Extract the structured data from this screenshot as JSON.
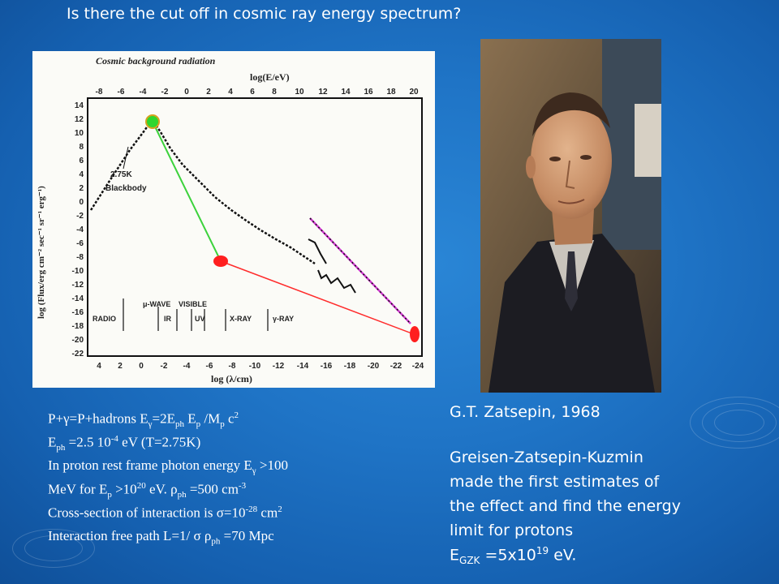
{
  "slide": {
    "title": "Is there the cut off in cosmic ray energy spectrum?",
    "colors": {
      "background": "#1f74c6",
      "text": "#ffffff",
      "chart_panel": "#fbfbf7"
    }
  },
  "chart": {
    "title": "Cosmic background radiation",
    "top_axis_label": "log(E/eV)",
    "top_ticks": [
      "-8",
      "-6",
      "-4",
      "-2",
      "0",
      "2",
      "4",
      "6",
      "8",
      "10",
      "12",
      "14",
      "16",
      "18",
      "20"
    ],
    "bottom_axis_label": "log (λ/cm)",
    "bottom_ticks": [
      "4",
      "2",
      "0",
      "-2",
      "-4",
      "-6",
      "-8",
      "-10",
      "-12",
      "-14",
      "-16",
      "-18",
      "-20",
      "-22",
      "-24"
    ],
    "y_axis_label": "log (Flux/erg cm⁻² sec⁻¹ sr⁻¹ erg⁻¹)",
    "y_ticks": [
      "14",
      "12",
      "10",
      "8",
      "6",
      "4",
      "2",
      "0",
      "-2",
      "-4",
      "-6",
      "-8",
      "-10",
      "-12",
      "-14",
      "-16",
      "-18",
      "-20",
      "-22"
    ],
    "annotations": {
      "temperature": "2.75K",
      "blackbody": "Blackbody"
    },
    "bands": [
      "RADIO",
      "μ-WAVE",
      "IR",
      "VISIBLE",
      "UV",
      "X-RAY",
      "γ-RAY"
    ],
    "markers": {
      "start_color": "#2ed62e",
      "mid_color": "#ff1f1f",
      "end_color": "#ff1f1f",
      "line1_color": "#3cd23c",
      "line2_color": "#ff2b2b",
      "fit_color": "#d43cd4"
    }
  },
  "physics": {
    "line1": {
      "a": "P+γ=P+hadrons   E",
      "a_sub": "γ",
      "b": "=2E",
      "b_sub": "ph",
      "c": " E",
      "c_sub": "p",
      "d": " /M",
      "d_sub": "p",
      "e": " c",
      "e_sup": "2"
    },
    "line2": {
      "a": "E",
      "a_sub": "ph",
      "b": " =2.5 10",
      "b_sup": "-4",
      "c": " eV (T=2.75K)"
    },
    "line3": {
      "a": "In proton rest frame photon energy E",
      "a_sub": "γ",
      "b": " >100"
    },
    "line4": {
      "a": "MeV for E",
      "a_sub": "p",
      "b": " >10",
      "b_sup": "20",
      "c": " eV. ρ",
      "c_sub": "ph",
      "d": " =500 cm",
      "d_sup": "-3"
    },
    "line5": {
      "a": "Cross-section of interaction is σ=10",
      "a_sup": "-28",
      "b": " cm",
      "b_sup": "2"
    },
    "line6": {
      "a": "Interaction free path L=1/ σ ρ",
      "a_sub": "ph",
      "b": " =70 Mpc"
    }
  },
  "side": {
    "caption": "G.T. Zatsepin, 1968",
    "desc1": "Greisen-Zatsepin-Kuzmin",
    "desc2": "made the first estimates of",
    "desc3": "the effect and find the energy",
    "desc4": "limit for protons",
    "gzk": {
      "a": "E",
      "a_sub": "GZK",
      "b": " =5x10",
      "b_sup": "19",
      "c": " eV."
    }
  },
  "photo": {
    "icon": "portrait-photo-icon"
  }
}
